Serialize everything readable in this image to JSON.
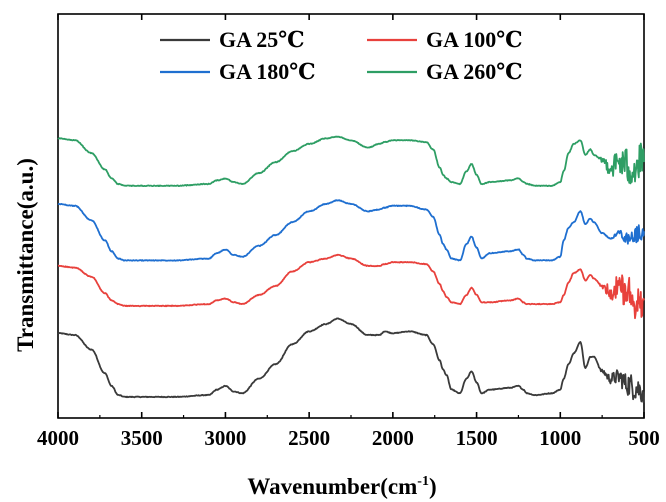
{
  "chart_data": {
    "type": "line",
    "xlabel": "Wavenumber(cm",
    "xlabel_sup": "-1",
    "xlabel_suffix": ")",
    "ylabel": "Transmittance(a.u.)",
    "xlim": [
      4000,
      500
    ],
    "x_reversed": true,
    "ylim": [
      0,
      10
    ],
    "x_ticks": [
      4000,
      3500,
      3000,
      2500,
      2000,
      1500,
      1000,
      500
    ],
    "y_ticks_shown": false,
    "grid": false,
    "legend": {
      "position": "top",
      "columns": 2
    },
    "series": [
      {
        "name": "GA 25℃",
        "color": "#3a3a3a",
        "x": [
          4000,
          3900,
          3800,
          3720,
          3680,
          3640,
          3600,
          3500,
          3300,
          3100,
          3050,
          3000,
          2950,
          2900,
          2800,
          2700,
          2600,
          2500,
          2400,
          2330,
          2250,
          2150,
          2080,
          2050,
          2000,
          1900,
          1800,
          1760,
          1720,
          1700,
          1680,
          1650,
          1600,
          1560,
          1530,
          1500,
          1470,
          1420,
          1300,
          1250,
          1220,
          1200,
          1150,
          1050,
          1000,
          980,
          950,
          920,
          880,
          850,
          820,
          800,
          750,
          700,
          650,
          600,
          550,
          500
        ],
        "y": [
          2.0,
          1.95,
          1.55,
          0.9,
          0.55,
          0.3,
          0.25,
          0.25,
          0.25,
          0.3,
          0.45,
          0.55,
          0.4,
          0.35,
          0.75,
          1.15,
          1.7,
          2.05,
          2.25,
          2.4,
          2.25,
          1.95,
          1.95,
          2.05,
          2.0,
          2.05,
          1.95,
          1.7,
          1.25,
          1.0,
          0.85,
          0.45,
          0.35,
          0.75,
          0.95,
          0.65,
          0.35,
          0.45,
          0.5,
          0.55,
          0.45,
          0.35,
          0.3,
          0.35,
          0.45,
          0.75,
          1.15,
          1.45,
          1.75,
          1.05,
          1.35,
          1.35,
          0.95,
          0.75,
          0.8,
          0.6,
          0.5,
          0.4
        ],
        "noise_below": 780,
        "noise_amp": 0.35
      },
      {
        "name": "GA 100℃",
        "color": "#e8413c",
        "x": [
          4000,
          3900,
          3800,
          3720,
          3680,
          3640,
          3600,
          3500,
          3300,
          3100,
          3050,
          3000,
          2950,
          2900,
          2800,
          2700,
          2600,
          2500,
          2400,
          2330,
          2250,
          2150,
          2080,
          2050,
          2000,
          1900,
          1800,
          1760,
          1720,
          1700,
          1680,
          1650,
          1600,
          1560,
          1530,
          1500,
          1470,
          1420,
          1300,
          1250,
          1220,
          1200,
          1150,
          1050,
          1000,
          980,
          950,
          920,
          880,
          850,
          820,
          800,
          750,
          700,
          650,
          600,
          550,
          500
        ],
        "y": [
          3.85,
          3.8,
          3.55,
          3.1,
          2.9,
          2.8,
          2.75,
          2.75,
          2.75,
          2.8,
          2.9,
          2.95,
          2.85,
          2.8,
          3.05,
          3.3,
          3.7,
          3.95,
          4.05,
          4.15,
          4.05,
          3.85,
          3.85,
          3.9,
          3.95,
          3.95,
          3.9,
          3.7,
          3.35,
          3.15,
          3.0,
          2.85,
          2.8,
          3.05,
          3.25,
          3.05,
          2.85,
          2.85,
          2.9,
          2.95,
          2.85,
          2.8,
          2.8,
          2.8,
          2.85,
          3.05,
          3.4,
          3.65,
          3.75,
          3.45,
          3.6,
          3.5,
          3.3,
          3.15,
          3.3,
          3.1,
          2.95,
          2.9
        ],
        "noise_below": 780,
        "noise_amp": 0.55
      },
      {
        "name": "GA 180℃",
        "color": "#1f6fd0",
        "x": [
          4000,
          3900,
          3800,
          3720,
          3680,
          3640,
          3600,
          3500,
          3300,
          3100,
          3050,
          3000,
          2950,
          2900,
          2800,
          2700,
          2600,
          2500,
          2400,
          2330,
          2250,
          2150,
          2080,
          2050,
          2000,
          1900,
          1800,
          1760,
          1720,
          1700,
          1680,
          1650,
          1600,
          1560,
          1530,
          1500,
          1470,
          1420,
          1300,
          1250,
          1220,
          1200,
          1150,
          1050,
          1000,
          980,
          950,
          920,
          880,
          850,
          820,
          800,
          750,
          700,
          650,
          600,
          550,
          500
        ],
        "y": [
          5.55,
          5.5,
          5.1,
          4.55,
          4.25,
          4.05,
          4.0,
          4.0,
          4.0,
          4.05,
          4.2,
          4.3,
          4.15,
          4.1,
          4.4,
          4.7,
          5.05,
          5.35,
          5.55,
          5.65,
          5.55,
          5.35,
          5.4,
          5.45,
          5.5,
          5.5,
          5.4,
          5.2,
          4.7,
          4.45,
          4.3,
          4.05,
          4.0,
          4.45,
          4.65,
          4.35,
          4.05,
          4.2,
          4.25,
          4.3,
          4.15,
          4.05,
          4.0,
          4.0,
          4.1,
          4.55,
          4.9,
          5.05,
          5.35,
          5.0,
          5.15,
          5.05,
          4.75,
          4.6,
          4.75,
          4.6,
          4.7,
          4.8
        ],
        "noise_below": 700,
        "noise_amp": 0.3
      },
      {
        "name": "GA 260℃",
        "color": "#2e9e64",
        "x": [
          4000,
          3900,
          3800,
          3720,
          3680,
          3640,
          3600,
          3500,
          3300,
          3100,
          3050,
          3000,
          2950,
          2900,
          2800,
          2700,
          2600,
          2500,
          2400,
          2330,
          2250,
          2150,
          2080,
          2050,
          2000,
          1900,
          1800,
          1760,
          1720,
          1700,
          1680,
          1650,
          1600,
          1560,
          1530,
          1500,
          1470,
          1420,
          1300,
          1250,
          1220,
          1200,
          1150,
          1050,
          1000,
          980,
          950,
          920,
          880,
          850,
          820,
          800,
          750,
          700,
          650,
          600,
          550,
          500
        ],
        "y": [
          7.35,
          7.3,
          6.95,
          6.5,
          6.25,
          6.1,
          6.05,
          6.05,
          6.05,
          6.1,
          6.2,
          6.25,
          6.15,
          6.1,
          6.4,
          6.7,
          7.0,
          7.2,
          7.35,
          7.4,
          7.3,
          7.1,
          7.2,
          7.25,
          7.3,
          7.3,
          7.25,
          7.05,
          6.55,
          6.35,
          6.25,
          6.15,
          6.1,
          6.45,
          6.65,
          6.35,
          6.1,
          6.15,
          6.2,
          6.25,
          6.15,
          6.1,
          6.05,
          6.05,
          6.15,
          6.45,
          6.95,
          7.2,
          7.3,
          6.9,
          7.05,
          6.9,
          6.75,
          6.55,
          6.7,
          6.6,
          6.55,
          6.7
        ],
        "noise_below": 780,
        "noise_amp": 0.6
      }
    ]
  }
}
